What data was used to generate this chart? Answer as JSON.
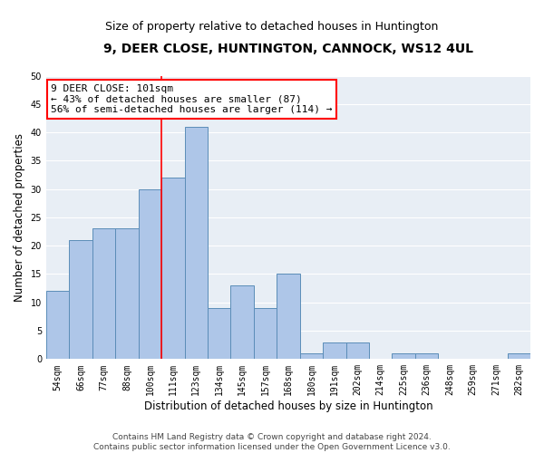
{
  "title": "9, DEER CLOSE, HUNTINGTON, CANNOCK, WS12 4UL",
  "subtitle": "Size of property relative to detached houses in Huntington",
  "xlabel": "Distribution of detached houses by size in Huntington",
  "ylabel": "Number of detached properties",
  "categories": [
    "54sqm",
    "66sqm",
    "77sqm",
    "88sqm",
    "100sqm",
    "111sqm",
    "123sqm",
    "134sqm",
    "145sqm",
    "157sqm",
    "168sqm",
    "180sqm",
    "191sqm",
    "202sqm",
    "214sqm",
    "225sqm",
    "236sqm",
    "248sqm",
    "259sqm",
    "271sqm",
    "282sqm"
  ],
  "values": [
    12,
    21,
    23,
    23,
    30,
    32,
    41,
    9,
    13,
    9,
    15,
    1,
    3,
    3,
    0,
    1,
    1,
    0,
    0,
    0,
    1
  ],
  "bar_color": "#aec6e8",
  "bar_edge_color": "#5b8db8",
  "bg_color": "#e8eef5",
  "grid_color": "#ffffff",
  "vline_x": 4.5,
  "vline_color": "red",
  "annotation_text": "9 DEER CLOSE: 101sqm\n← 43% of detached houses are smaller (87)\n56% of semi-detached houses are larger (114) →",
  "annotation_box_color": "red",
  "ylim": [
    0,
    50
  ],
  "yticks": [
    0,
    5,
    10,
    15,
    20,
    25,
    30,
    35,
    40,
    45,
    50
  ],
  "footer1": "Contains HM Land Registry data © Crown copyright and database right 2024.",
  "footer2": "Contains public sector information licensed under the Open Government Licence v3.0.",
  "title_fontsize": 10,
  "subtitle_fontsize": 9,
  "axis_label_fontsize": 8.5,
  "tick_fontsize": 7,
  "annotation_fontsize": 8,
  "footer_fontsize": 6.5
}
